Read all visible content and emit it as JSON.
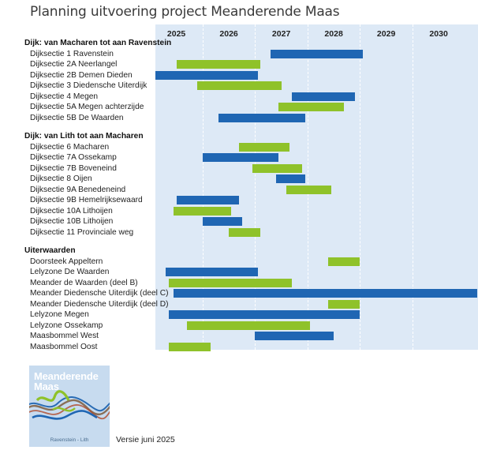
{
  "title": "Planning uitvoering project Meanderende Maas",
  "version_text": "Versie juni 2025",
  "logo": {
    "name_line1": "Meanderende",
    "name_line2": "Maas",
    "subtitle": "Ravenstein - Lith"
  },
  "colors": {
    "blue": "#1f66b3",
    "green": "#8fc22a",
    "chart_background": "#dde9f6"
  },
  "chart_data": {
    "type": "gantt",
    "title": "Planning uitvoering project Meanderende Maas",
    "x_axis": {
      "unit": "year",
      "range": [
        2024.6,
        2030.75
      ],
      "ticks": [
        2025,
        2026,
        2027,
        2028,
        2029,
        2030
      ]
    },
    "groups": [
      {
        "label": "Dijk: van Macharen tot aan Ravenstein",
        "items": [
          {
            "label": "Dijksectie 1 Ravenstein",
            "start": 2026.8,
            "end": 2028.55,
            "color": "blue"
          },
          {
            "label": "Dijksectie 2A Neerlangel",
            "start": 2025.0,
            "end": 2026.6,
            "color": "green"
          },
          {
            "label": "Dijksectie 2B Demen Dieden",
            "start": 2024.6,
            "end": 2026.55,
            "color": "blue"
          },
          {
            "label": "Dijksectie 3 Diedensche Uiterdijk",
            "start": 2025.4,
            "end": 2027.0,
            "color": "green"
          },
          {
            "label": "Dijksectie 4 Megen",
            "start": 2027.2,
            "end": 2028.4,
            "color": "blue"
          },
          {
            "label": "Dijksectie 5A Megen achterzijde",
            "start": 2026.95,
            "end": 2028.2,
            "color": "green"
          },
          {
            "label": "Dijksectie 5B De Waarden",
            "start": 2025.8,
            "end": 2027.45,
            "color": "blue"
          }
        ]
      },
      {
        "label": "Dijk: van Lith tot aan Macharen",
        "items": [
          {
            "label": "Dijksectie 6 Macharen",
            "start": 2026.2,
            "end": 2027.15,
            "color": "green"
          },
          {
            "label": "Dijksectie 7A Ossekamp",
            "start": 2025.5,
            "end": 2026.95,
            "color": "blue"
          },
          {
            "label": "Dijksectie 7B Boveneind",
            "start": 2026.45,
            "end": 2027.4,
            "color": "green"
          },
          {
            "label": "Dijksectie 8 Oijen",
            "start": 2026.9,
            "end": 2027.45,
            "color": "blue"
          },
          {
            "label": "Dijksectie 9A Benedeneind",
            "start": 2027.1,
            "end": 2027.95,
            "color": "green"
          },
          {
            "label": "Dijksectie 9B Hemelrijksewaard",
            "start": 2025.0,
            "end": 2026.2,
            "color": "blue"
          },
          {
            "label": "Dijksectie 10A Lithoijen",
            "start": 2024.95,
            "end": 2026.05,
            "color": "green"
          },
          {
            "label": "Dijksectie 10B Lithoijen",
            "start": 2025.5,
            "end": 2026.25,
            "color": "blue"
          },
          {
            "label": "Dijksectie 11 Provinciale weg",
            "start": 2026.0,
            "end": 2026.6,
            "color": "green"
          }
        ]
      },
      {
        "label": "Uiterwaarden",
        "items": [
          {
            "label": "Doorsteek Appeltern",
            "start": 2027.9,
            "end": 2028.5,
            "color": "green"
          },
          {
            "label": "Lelyzone De Waarden",
            "start": 2024.8,
            "end": 2026.55,
            "color": "blue"
          },
          {
            "label": "Meander de Waarden (deel B)",
            "start": 2024.85,
            "end": 2027.2,
            "color": "green"
          },
          {
            "label": "Meander Diedensche Uiterdijk (deel C)",
            "start": 2024.95,
            "end": 2030.75,
            "color": "blue"
          },
          {
            "label": "Meander Diedensche Uiterdijk (deel D)",
            "start": 2027.9,
            "end": 2028.5,
            "color": "green"
          },
          {
            "label": "Lelyzone Megen",
            "start": 2024.85,
            "end": 2028.5,
            "color": "blue"
          },
          {
            "label": "Lelyzone Ossekamp",
            "start": 2025.2,
            "end": 2027.55,
            "color": "green"
          },
          {
            "label": "Maasbommel West",
            "start": 2026.5,
            "end": 2028.0,
            "color": "blue"
          },
          {
            "label": "Maasbommel Oost",
            "start": 2024.85,
            "end": 2025.65,
            "color": "green"
          }
        ]
      }
    ]
  }
}
